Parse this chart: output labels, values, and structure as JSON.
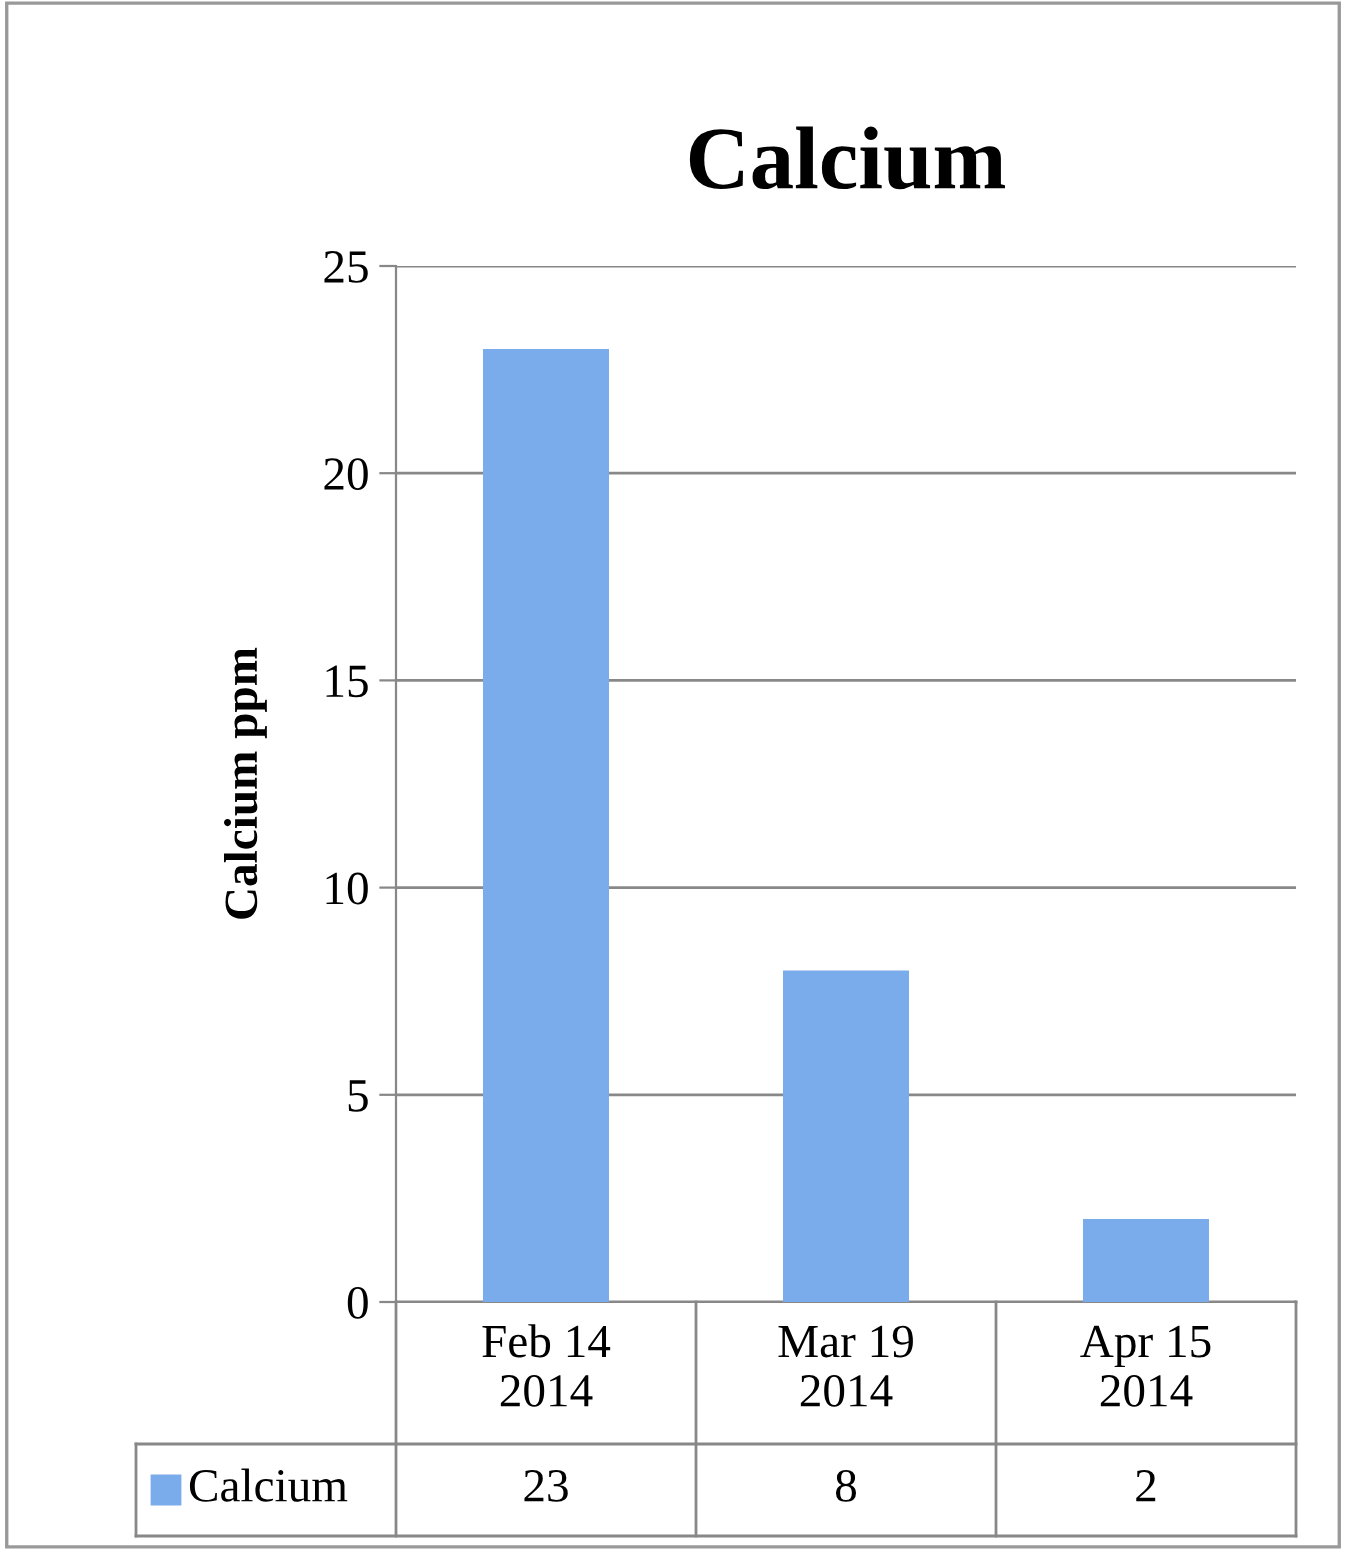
{
  "chart_data": {
    "type": "bar",
    "title": "Calcium",
    "ylabel": "Calcium ppm",
    "categories": [
      "Feb 14\n2014",
      "Mar 19\n2014",
      "Apr 15\n2014"
    ],
    "series": [
      {
        "name": "Calcium",
        "color": "#7aabea",
        "values": [
          23,
          8,
          2
        ]
      }
    ],
    "ylim": [
      0,
      25
    ],
    "yticks": [
      0,
      5,
      10,
      15,
      20,
      25
    ],
    "grid": "y",
    "legend": "bottom",
    "data_labels": true
  }
}
